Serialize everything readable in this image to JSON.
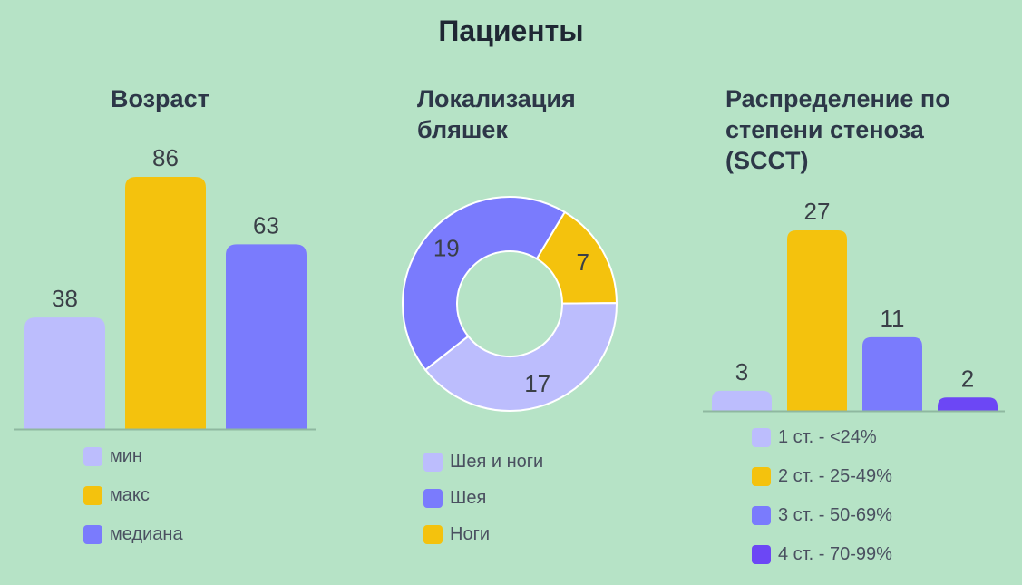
{
  "title": "Пациенты",
  "chart_data": [
    {
      "type": "bar",
      "title": "Возраст",
      "categories": [
        "мин",
        "макс",
        "медиана"
      ],
      "values": [
        38,
        86,
        63
      ],
      "colors": [
        "#bcbdfd",
        "#f4c20d",
        "#7a7bfd"
      ],
      "ylim": [
        0,
        86
      ],
      "legend": [
        "мин",
        "макс",
        "медиана"
      ],
      "legend_position": "bottom"
    },
    {
      "type": "pie",
      "title": "Локализация бляшек",
      "labels": [
        "Шея и ноги",
        "Шея",
        "Ноги"
      ],
      "values": [
        17,
        19,
        7
      ],
      "colors": [
        "#bcbdfd",
        "#7a7bfd",
        "#f4c20d"
      ],
      "legend_position": "bottom"
    },
    {
      "type": "bar",
      "title": "Распределение по степени стеноза (SCCT)",
      "categories": [
        "1 ст. - <24%",
        "2 ст. - 25-49%",
        "3 ст. - 50-69%",
        "4 ст. - 70-99%"
      ],
      "values": [
        3,
        27,
        11,
        2
      ],
      "colors": [
        "#bcbdfd",
        "#f4c20d",
        "#7a7bfd",
        "#6c47f5"
      ],
      "ylim": [
        0,
        27
      ],
      "legend": [
        "1 ст. - <24%",
        "2 ст. - 25-49%",
        "3 ст. - 50-69%",
        "4 ст. - 70-99%"
      ],
      "legend_position": "bottom"
    }
  ]
}
